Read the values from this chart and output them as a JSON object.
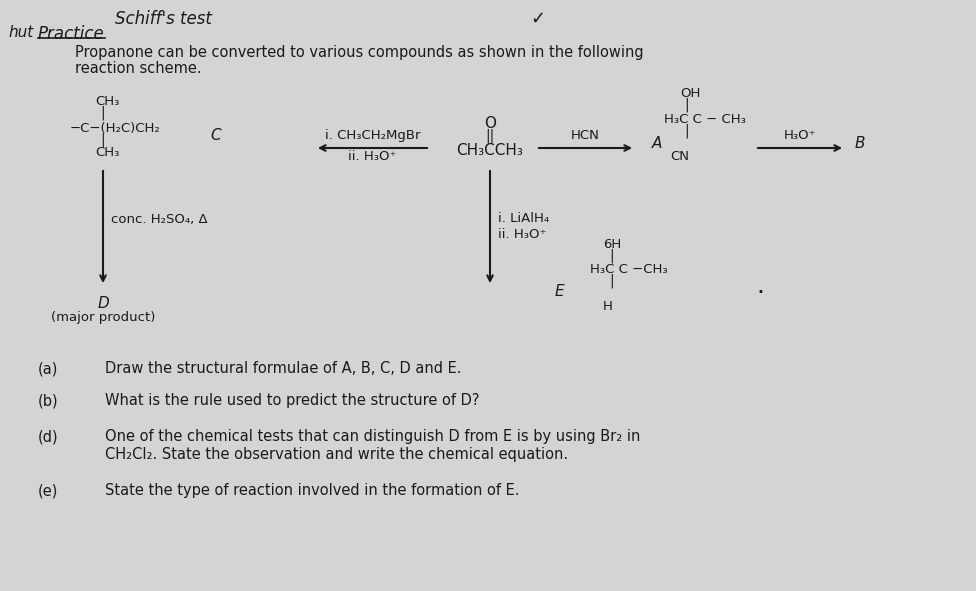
{
  "bg_color": "#d4d4d4",
  "text_color": "#1a1a1a",
  "arrow_color": "#1a1a1a",
  "header1": "Schiff's test",
  "header2": "hut",
  "header3": "Practice",
  "intro1": "Propanone can be converted to various compounds as shown in the following",
  "intro2": "reaction scheme.",
  "propanone_O": "O",
  "propanone_bond": "||",
  "propanone_formula": "CH₃CCH₃",
  "HCN_label": "HCN",
  "H3O_label": "H₃O⁺",
  "label_A": "A",
  "label_B": "B",
  "label_C": "C",
  "label_D": "D",
  "label_E": "E",
  "major_product": "(major product)",
  "grignard_i": "i. CH₃CH₂MgBr",
  "grignard_ii": "ii. H₃O⁺",
  "conc_H2SO4": "conc. H₂SO₄, Δ",
  "LiAlH4_i": "i. LiAlH₄",
  "LiAlH4_ii": "ii. H₃O⁺",
  "compound_C_ch3_top": "CH₃",
  "compound_C_line1": "|",
  "compound_C_main": "−C−(H₂C)CH₂",
  "compound_C_line2": "|",
  "compound_C_ch3_bot": "CH₃",
  "compound_A_OH": "OH",
  "compound_A_line1": "|",
  "compound_A_main": "H₃C C − CH₃",
  "compound_A_line2": "|",
  "compound_A_CN": "CN",
  "compound_E_6H": "6H",
  "compound_E_line1": "|",
  "compound_E_main": "H₃C C −CH₃",
  "compound_E_line2": "|",
  "compound_E_H": "H",
  "qa_a": "(a)       Draw the structural formulae of A, B, C, D and E.",
  "qa_b": "(b)       What is the rule used to predict the structure of D?",
  "qa_d1": "(d)       One of the chemical tests that can distinguish D from E is by using Br₂ in",
  "qa_d2": "           CH₂Cl₂. State the observation and write the chemical equation.",
  "qa_e": "(e)       State the type of reaction involved in the formation of E."
}
